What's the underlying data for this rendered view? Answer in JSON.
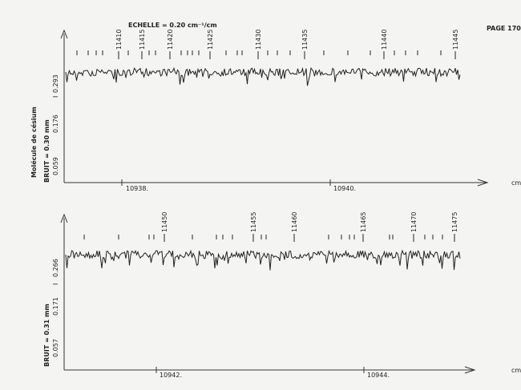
{
  "header": {
    "scale": "ECHELLE = 0.20 cm⁻¹/cm",
    "page": "PAGE 170"
  },
  "panels": [
    {
      "molecule": "Molécule de césium",
      "noise": "BRUIT = 0.30 mm",
      "intensity_symbol": "I",
      "intensity_levels": [
        "0.293",
        "0.176",
        "0.059"
      ],
      "line_labels": [
        "11410",
        "11415",
        "11420",
        "11425",
        "11430",
        "11435",
        "11440",
        "11445"
      ],
      "wavenumbers": [
        "10938.",
        "10940."
      ],
      "unit": "cm"
    },
    {
      "noise": "BRUIT = 0.31 mm",
      "intensity_symbol": "I",
      "intensity_levels": [
        "0.266",
        "0.171",
        "0.057"
      ],
      "line_labels": [
        "11450",
        "11455",
        "11460",
        "11465",
        "11470",
        "11475"
      ],
      "wavenumbers": [
        "10942.",
        "10944."
      ],
      "unit": "cm"
    }
  ]
}
